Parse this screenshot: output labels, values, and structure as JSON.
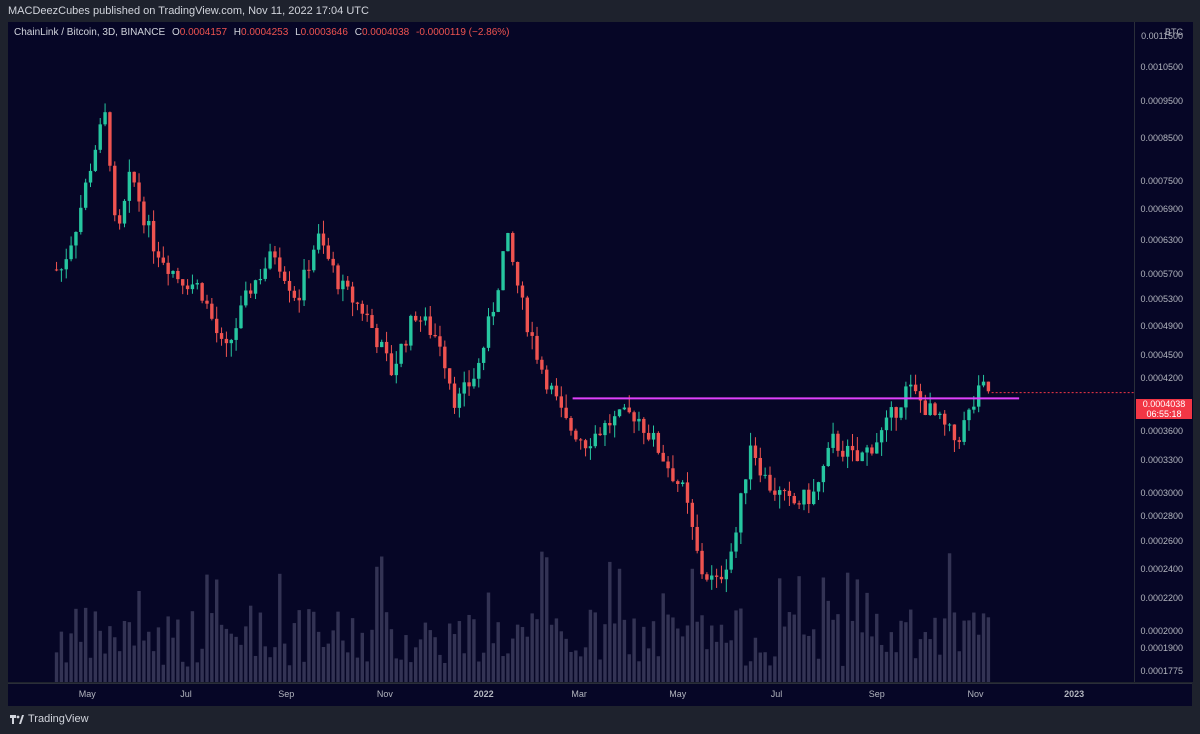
{
  "header": {
    "publisher": "MACDeezCubes published on TradingView.com, Nov 11, 2022 17:04 UTC"
  },
  "legend": {
    "symbol": "ChainLink / Bitcoin, 3D, BINANCE",
    "open_label": "O",
    "open": "0.0004157",
    "high_label": "H",
    "high": "0.0004253",
    "low_label": "L",
    "low": "0.0003646",
    "close_label": "C",
    "close": "0.0004038",
    "change": "-0.0000119 (−2.86%)"
  },
  "price_scale": {
    "currency": "BTC"
  },
  "price_label": {
    "price": "0.0004038",
    "countdown": "06:55:18"
  },
  "branding": {
    "name": "TradingView"
  },
  "colors": {
    "up": "#26c6a0",
    "down": "#ef5350",
    "background": "#060626",
    "resistance": "#e040fb",
    "volume": "#5a5a7a"
  },
  "chart_data": {
    "type": "candlestick",
    "symbol": "LINK/BTC",
    "interval": "3D",
    "y_scale": "log",
    "y_ticks": [
      "0.0011500",
      "0.0010500",
      "0.0009500",
      "0.0008500",
      "0.0007500",
      "0.0006900",
      "0.0006300",
      "0.0005700",
      "0.0005300",
      "0.0004900",
      "0.0004500",
      "0.0004200",
      "0.0003900",
      "0.0003600",
      "0.0003300",
      "0.0003000",
      "0.0002800",
      "0.0002600",
      "0.0002400",
      "0.0002200",
      "0.0002000",
      "0.0001900",
      "0.0001775"
    ],
    "x_ticks": [
      "May",
      "Jul",
      "Sep",
      "Nov",
      "2022",
      "Mar",
      "May",
      "Jul",
      "Sep",
      "Nov",
      "2023"
    ],
    "close_path": [
      {
        "x": "2021-04-15",
        "y": 0.00058
      },
      {
        "x": "2021-04-25",
        "y": 0.00067
      },
      {
        "x": "2021-05-05",
        "y": 0.00082
      },
      {
        "x": "2021-05-13",
        "y": 0.00092
      },
      {
        "x": "2021-05-19",
        "y": 0.00062
      },
      {
        "x": "2021-05-28",
        "y": 0.00077
      },
      {
        "x": "2021-06-10",
        "y": 0.00063
      },
      {
        "x": "2021-06-25",
        "y": 0.00057
      },
      {
        "x": "2021-07-10",
        "y": 0.00055
      },
      {
        "x": "2021-07-25",
        "y": 0.00045
      },
      {
        "x": "2021-08-10",
        "y": 0.00055
      },
      {
        "x": "2021-08-25",
        "y": 0.00061
      },
      {
        "x": "2021-09-08",
        "y": 0.00053
      },
      {
        "x": "2021-09-20",
        "y": 0.00064
      },
      {
        "x": "2021-10-05",
        "y": 0.00055
      },
      {
        "x": "2021-10-20",
        "y": 0.00051
      },
      {
        "x": "2021-11-05",
        "y": 0.00043
      },
      {
        "x": "2021-11-20",
        "y": 0.00051
      },
      {
        "x": "2021-12-05",
        "y": 0.00047
      },
      {
        "x": "2021-12-15",
        "y": 0.00039
      },
      {
        "x": "2021-12-28",
        "y": 0.00043
      },
      {
        "x": "2022-01-08",
        "y": 0.00053
      },
      {
        "x": "2022-01-15",
        "y": 0.00064
      },
      {
        "x": "2022-01-25",
        "y": 0.00052
      },
      {
        "x": "2022-02-05",
        "y": 0.00044
      },
      {
        "x": "2022-02-20",
        "y": 0.00037
      },
      {
        "x": "2022-03-05",
        "y": 0.00035
      },
      {
        "x": "2022-03-20",
        "y": 0.00037
      },
      {
        "x": "2022-04-05",
        "y": 0.00038
      },
      {
        "x": "2022-04-20",
        "y": 0.00034
      },
      {
        "x": "2022-05-05",
        "y": 0.0003
      },
      {
        "x": "2022-05-15",
        "y": 0.00024
      },
      {
        "x": "2022-05-25",
        "y": 0.00023
      },
      {
        "x": "2022-06-05",
        "y": 0.00026
      },
      {
        "x": "2022-06-15",
        "y": 0.00035
      },
      {
        "x": "2022-06-25",
        "y": 0.00031
      },
      {
        "x": "2022-07-10",
        "y": 0.00029
      },
      {
        "x": "2022-07-25",
        "y": 0.0003
      },
      {
        "x": "2022-08-05",
        "y": 0.00035
      },
      {
        "x": "2022-08-20",
        "y": 0.00033
      },
      {
        "x": "2022-09-05",
        "y": 0.00036
      },
      {
        "x": "2022-09-20",
        "y": 0.00041
      },
      {
        "x": "2022-10-05",
        "y": 0.00038
      },
      {
        "x": "2022-10-20",
        "y": 0.00035
      },
      {
        "x": "2022-11-05",
        "y": 0.00041
      },
      {
        "x": "2022-11-11",
        "y": 0.0004038
      }
    ],
    "horizontal_lines": [
      {
        "y": 0.000397,
        "from": "2022-02-25",
        "to": "2022-11-28"
      }
    ]
  }
}
